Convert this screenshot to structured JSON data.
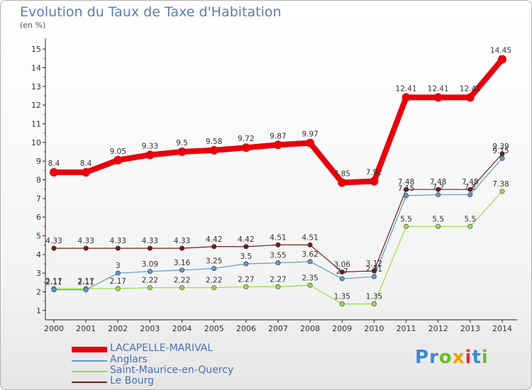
{
  "title": "Evolution du Taux de Taxe d'Habitation",
  "unit_label": "(en %)",
  "brand": {
    "name": "Proxiti",
    "letters": [
      "P",
      "r",
      "o",
      "x",
      "i",
      "t",
      "i"
    ],
    "letter_colors": [
      "#3a8ad0",
      "#3a8ad0",
      "#6bbf2a",
      "#f0a000",
      "#e23030",
      "#3a8ad0",
      "#6bbf2a"
    ]
  },
  "chart_data": {
    "type": "line",
    "title": "Evolution du Taux de Taxe d'Habitation",
    "ylabel": "(en %)",
    "xlabel": "",
    "x": [
      2000,
      2001,
      2002,
      2003,
      2004,
      2005,
      2006,
      2007,
      2008,
      2009,
      2010,
      2011,
      2012,
      2013,
      2014
    ],
    "ylim": [
      0.5,
      15.5
    ],
    "yticks": [
      1,
      2,
      3,
      4,
      5,
      6,
      7,
      8,
      9,
      10,
      11,
      12,
      13,
      14,
      15
    ],
    "grid": false,
    "legend_position": "bottom-left",
    "series": [
      {
        "name": "LACAPELLE-MARIVAL",
        "color": "#e8000b",
        "values": [
          8.4,
          8.4,
          9.05,
          9.33,
          9.5,
          9.58,
          9.72,
          9.87,
          9.97,
          7.85,
          7.92,
          12.41,
          12.41,
          12.41,
          14.45
        ],
        "labels": [
          "8.4",
          "8.4",
          "9.05",
          "9.33",
          "9.5",
          "9.58",
          "9.72",
          "9.87",
          "9.97",
          "7.85",
          "7.92",
          "12.41",
          "12.41",
          "12.41",
          "14.45"
        ]
      },
      {
        "name": "Anglars",
        "color": "#5b9bd5",
        "values": [
          2.11,
          2.11,
          3,
          3.09,
          3.16,
          3.25,
          3.5,
          3.55,
          3.62,
          2.7,
          2.81,
          7.15,
          7.2,
          7.2,
          9.15
        ],
        "labels": [
          "2.11",
          "2.11",
          "3",
          "3.09",
          "3.16",
          "3.25",
          "3.5",
          "3.55",
          "3.62",
          "2.7",
          "2.81",
          "7.15",
          "7.2",
          "7.2",
          "9.15"
        ]
      },
      {
        "name": "Saint-Maurice-en-Quercy",
        "color": "#99dd44",
        "values": [
          2.17,
          2.17,
          2.17,
          2.22,
          2.22,
          2.22,
          2.27,
          2.27,
          2.35,
          1.35,
          1.35,
          5.5,
          5.5,
          5.5,
          7.38
        ],
        "labels": [
          "2.17",
          "2.17",
          "2.17",
          "2.22",
          "2.22",
          "2.22",
          "2.27",
          "2.27",
          "2.35",
          "1.35",
          "1.35",
          "5.5",
          "5.5",
          "5.5",
          "7.38"
        ]
      },
      {
        "name": "Le Bourg",
        "color": "#7a1a1a",
        "values": [
          4.33,
          4.33,
          4.33,
          4.33,
          4.33,
          4.42,
          4.42,
          4.51,
          4.51,
          3.06,
          3.12,
          7.48,
          7.48,
          7.48,
          9.39
        ],
        "labels": [
          "4.33",
          "4.33",
          "4.33",
          "4.33",
          "4.33",
          "4.42",
          "4.42",
          "4.51",
          "4.51",
          "3.06",
          "3.12",
          "7.48",
          "7.48",
          "7.48",
          "9.39"
        ]
      }
    ]
  }
}
